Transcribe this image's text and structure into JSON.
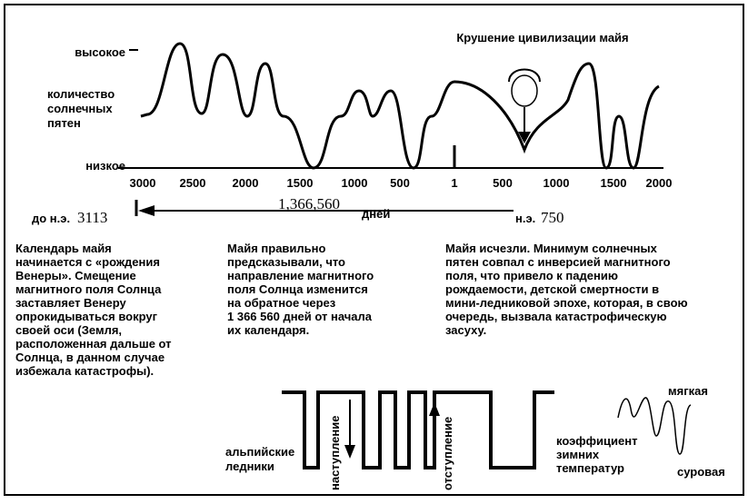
{
  "header": {
    "title": "Крушение цивилизации майя"
  },
  "axis": {
    "high": "высокое",
    "low": "низкое",
    "label": [
      "количество",
      "солнечных",
      "пятен"
    ],
    "ticks": [
      "3000",
      "2500",
      "2000",
      "1500",
      "1000",
      "500",
      "1",
      "500",
      "1000",
      "1500",
      "2000"
    ]
  },
  "timeline": {
    "bc": "до н.э.",
    "start": "3113",
    "span": "1,366,560",
    "days": "дней",
    "ad": "н.э.",
    "end": "750"
  },
  "paragraphs": [
    [
      "Календарь майя",
      "начинается с «рождения",
      "Венеры». Смещение",
      "магнитного поля Солнца",
      "заставляет Венеру",
      "опрокидываться вокруг",
      "своей оси (Земля,",
      "расположенная дальше от",
      "Солнца, в данном случае",
      "избежала катастрофы)."
    ],
    [
      "Майя правильно",
      "предсказывали, что",
      "направление магнитного",
      "поля Солнца изменится",
      "на обратное через",
      "1 366 560 дней от начала",
      "их календаря."
    ],
    [
      "Майя исчезли. Минимум солнечных",
      "пятен совпал с инверсией магнитного",
      "поля, что привело к падению",
      "рождаемости, детской смертности в",
      "мини-ледниковой эпохе, которая, в свою",
      "очередь, вызвала катастрофическую",
      "засуху."
    ]
  ],
  "glaciers": {
    "label": [
      "альпийские",
      "ледники"
    ],
    "advance": "наступление",
    "retreat": "отступление",
    "coef": [
      "коэффициент",
      "зимних",
      "температур"
    ],
    "mild": "мягкая",
    "harsh": "суровая"
  }
}
